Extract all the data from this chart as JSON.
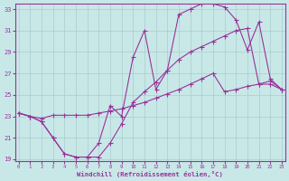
{
  "bg_color": "#c8e8e8",
  "line_color": "#993399",
  "grid_color": "#aacccc",
  "xlabel": "Windchill (Refroidissement éolien,°C)",
  "xlim": [
    0,
    23
  ],
  "ylim": [
    19,
    33
  ],
  "yticks": [
    19,
    21,
    23,
    25,
    27,
    29,
    31,
    33
  ],
  "xticks": [
    0,
    1,
    2,
    3,
    4,
    5,
    6,
    7,
    8,
    9,
    10,
    11,
    12,
    13,
    14,
    15,
    16,
    17,
    18,
    19,
    20,
    21,
    22,
    23
  ],
  "curve1_x": [
    0,
    1,
    2,
    3,
    4,
    5,
    6,
    7,
    8,
    9,
    10,
    11,
    12,
    13,
    14,
    15,
    16,
    17,
    18,
    19,
    20,
    21,
    22,
    23
  ],
  "curve1_y": [
    23.3,
    23.0,
    22.5,
    21.0,
    19.5,
    19.2,
    19.2,
    19.2,
    20.5,
    22.3,
    24.3,
    25.3,
    26.2,
    27.3,
    28.3,
    29.0,
    29.5,
    30.0,
    30.5,
    31.0,
    31.2,
    26.0,
    26.0,
    25.5
  ],
  "curve2_x": [
    0,
    1,
    2,
    3,
    4,
    5,
    6,
    7,
    8,
    9,
    10,
    11,
    12,
    13,
    14,
    15,
    16,
    17,
    18,
    19,
    20,
    21,
    22,
    23
  ],
  "curve2_y": [
    23.3,
    23.0,
    22.8,
    23.1,
    23.1,
    23.1,
    23.1,
    23.3,
    23.5,
    23.7,
    24.0,
    24.3,
    24.7,
    25.1,
    25.5,
    26.0,
    26.5,
    27.0,
    25.3,
    25.5,
    25.8,
    26.0,
    26.3,
    25.5
  ],
  "curve3_x": [
    0,
    1,
    2,
    3,
    4,
    5,
    6,
    7,
    8,
    9,
    10,
    11,
    12,
    13,
    14,
    15,
    16,
    17,
    18,
    19,
    20,
    21,
    22,
    23
  ],
  "curve3_y": [
    23.3,
    23.0,
    22.5,
    21.0,
    19.5,
    19.2,
    19.2,
    20.5,
    24.0,
    23.0,
    28.5,
    31.0,
    25.5,
    27.3,
    32.5,
    33.0,
    33.5,
    33.5,
    33.2,
    32.0,
    29.2,
    31.8,
    26.5,
    25.5
  ]
}
